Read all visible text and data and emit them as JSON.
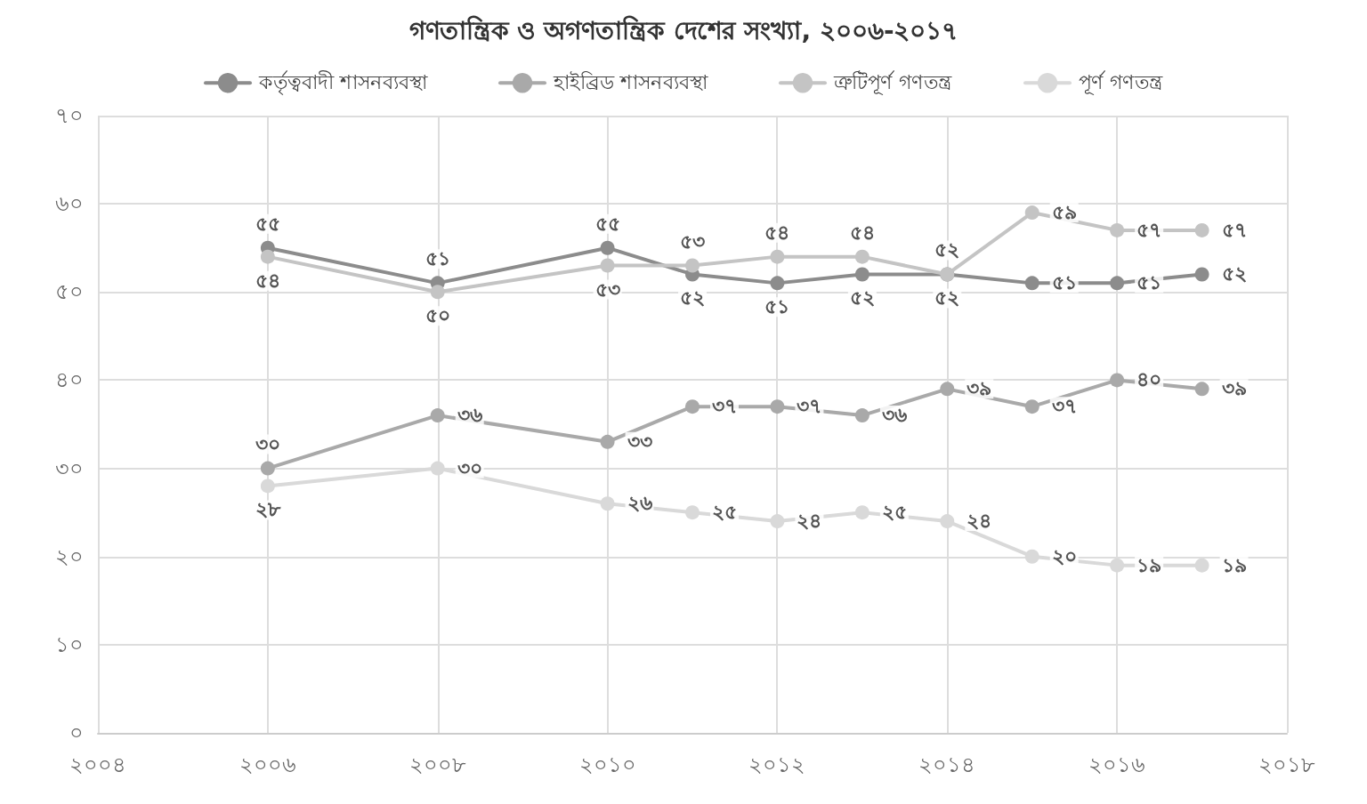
{
  "chart_data": {
    "type": "line",
    "title": "গণতান্ত্রিক ও অগণতান্ত্রিক দেশের সংখ্যা, ২০০৬-২০১৭",
    "x": [
      2006,
      2008,
      2010,
      2011,
      2012,
      2013,
      2014,
      2015,
      2016,
      2017
    ],
    "series": [
      {
        "name": "কর্তৃত্ববাদী শাসনব্যবস্থা",
        "color": "#8c8c8c",
        "values": [
          55,
          51,
          55,
          52,
          51,
          52,
          52,
          51,
          51,
          52
        ],
        "value_labels": [
          "৫৫",
          "৫১",
          "৫৫",
          "৫২",
          "৫১",
          "৫২",
          "৫২",
          "৫১",
          "৫১",
          "৫২"
        ]
      },
      {
        "name": "হাইব্রিড শাসনব্যবস্থা",
        "color": "#a9a9a9",
        "values": [
          30,
          36,
          33,
          37,
          37,
          36,
          39,
          37,
          40,
          39
        ],
        "value_labels": [
          "৩০",
          "৩৬",
          "৩৩",
          "৩৭",
          "৩৭",
          "৩৬",
          "৩৯",
          "৩৭",
          "৪০",
          "৩৯"
        ]
      },
      {
        "name": "ত্রুটিপূর্ণ গণতন্ত্র",
        "color": "#c4c4c4",
        "values": [
          54,
          50,
          53,
          53,
          54,
          54,
          52,
          59,
          57,
          57
        ],
        "value_labels": [
          "৫৪",
          "৫০",
          "৫৩",
          "৫৩",
          "৫৪",
          "৫৪",
          "৫২",
          "৫৯",
          "৫৭",
          "৫৭"
        ]
      },
      {
        "name": "পূর্ণ গণতন্ত্র",
        "color": "#d9d9d9",
        "values": [
          28,
          30,
          26,
          25,
          24,
          25,
          24,
          20,
          19,
          19
        ],
        "value_labels": [
          "২৮",
          "৩০",
          "২৬",
          "২৫",
          "২৪",
          "২৫",
          "২৪",
          "২০",
          "১৯",
          "১৯"
        ]
      }
    ],
    "xlim": [
      2004,
      2018
    ],
    "xticks": [
      {
        "value": 2004,
        "label": "২০০৪"
      },
      {
        "value": 2006,
        "label": "২০০৬"
      },
      {
        "value": 2008,
        "label": "২০০৮"
      },
      {
        "value": 2010,
        "label": "২০১০"
      },
      {
        "value": 2012,
        "label": "২০১২"
      },
      {
        "value": 2014,
        "label": "২০১৪"
      },
      {
        "value": 2016,
        "label": "২০১৬"
      },
      {
        "value": 2018,
        "label": "২০১৮"
      }
    ],
    "ylim": [
      0,
      70
    ],
    "yticks": [
      {
        "value": 0,
        "label": "০"
      },
      {
        "value": 10,
        "label": "১০"
      },
      {
        "value": 20,
        "label": "২০"
      },
      {
        "value": 30,
        "label": "৩০"
      },
      {
        "value": 40,
        "label": "৪০"
      },
      {
        "value": 50,
        "label": "৫০"
      },
      {
        "value": 60,
        "label": "৬০"
      },
      {
        "value": 70,
        "label": "৭০"
      }
    ],
    "grid": true,
    "legend": "top",
    "marker": "circle",
    "line_style": "solid"
  }
}
